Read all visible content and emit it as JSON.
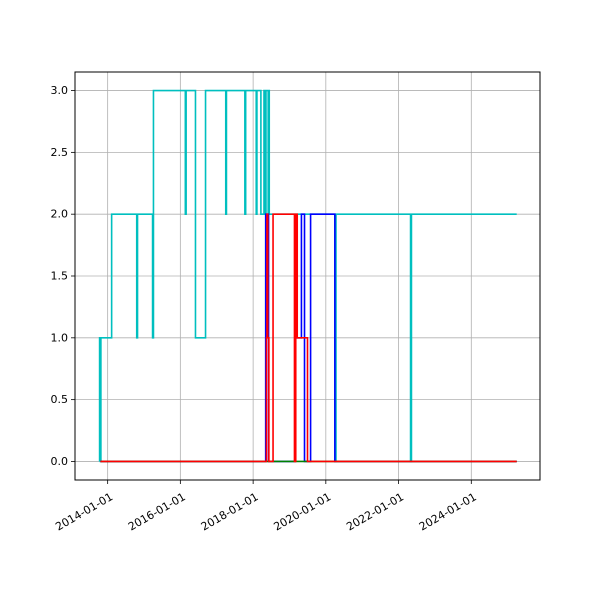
{
  "chart_data": {
    "type": "line",
    "title": "",
    "xlabel": "",
    "ylabel": "",
    "x_is_date": true,
    "xlim": [
      "2013-02-07",
      "2025-11-21"
    ],
    "ylim": [
      -0.15,
      3.15
    ],
    "grid": true,
    "legend": "none",
    "x_ticks": [
      "2014-01-01",
      "2016-01-01",
      "2018-01-01",
      "2020-01-01",
      "2022-01-01",
      "2024-01-01"
    ],
    "y_ticks": [
      0.0,
      0.5,
      1.0,
      1.5,
      2.0,
      2.5,
      3.0
    ],
    "y_tick_labels": [
      "0.0",
      "0.5",
      "1.0",
      "1.5",
      "2.0",
      "2.5",
      "3.0"
    ],
    "series": [
      {
        "color": "#00bfbf",
        "points": [
          [
            "2013-10-12",
            0
          ],
          [
            "2013-10-12",
            1
          ],
          [
            "2013-10-20",
            1
          ],
          [
            "2013-10-20",
            0
          ],
          [
            "2013-10-25",
            0
          ],
          [
            "2013-10-25",
            1
          ],
          [
            "2014-02-10",
            1
          ],
          [
            "2014-02-10",
            2
          ],
          [
            "2014-10-20",
            2
          ],
          [
            "2014-10-20",
            1
          ],
          [
            "2014-10-28",
            1
          ],
          [
            "2014-10-28",
            2
          ],
          [
            "2015-03-28",
            2
          ],
          [
            "2015-03-28",
            1
          ],
          [
            "2015-04-06",
            1
          ],
          [
            "2015-04-06",
            3
          ],
          [
            "2016-02-20",
            3
          ],
          [
            "2016-02-20",
            2
          ],
          [
            "2016-02-28",
            2
          ],
          [
            "2016-02-28",
            3
          ],
          [
            "2016-06-01",
            3
          ],
          [
            "2016-06-01",
            1
          ],
          [
            "2016-09-10",
            1
          ],
          [
            "2016-09-10",
            3
          ],
          [
            "2017-04-01",
            3
          ],
          [
            "2017-04-01",
            2
          ],
          [
            "2017-04-08",
            2
          ],
          [
            "2017-04-08",
            3
          ],
          [
            "2017-10-10",
            3
          ],
          [
            "2017-10-10",
            2
          ],
          [
            "2017-10-18",
            2
          ],
          [
            "2017-10-18",
            3
          ],
          [
            "2018-02-01",
            3
          ],
          [
            "2018-02-01",
            2
          ],
          [
            "2018-02-08",
            2
          ],
          [
            "2018-02-08",
            3
          ],
          [
            "2018-03-20",
            3
          ],
          [
            "2018-03-20",
            2
          ],
          [
            "2018-04-20",
            2
          ],
          [
            "2018-04-20",
            3
          ],
          [
            "2018-05-03",
            3
          ],
          [
            "2018-05-03",
            2
          ],
          [
            "2018-05-10",
            2
          ],
          [
            "2018-05-10",
            3
          ],
          [
            "2018-06-01",
            3
          ],
          [
            "2018-06-01",
            2
          ],
          [
            "2018-06-06",
            2
          ],
          [
            "2018-06-06",
            3
          ],
          [
            "2018-06-12",
            3
          ],
          [
            "2018-06-12",
            2
          ],
          [
            "2020-04-01",
            2
          ],
          [
            "2020-04-01",
            0
          ],
          [
            "2020-04-12",
            0
          ],
          [
            "2020-04-12",
            2
          ],
          [
            "2022-05-01",
            2
          ],
          [
            "2022-05-01",
            0
          ],
          [
            "2022-05-10",
            0
          ],
          [
            "2022-05-10",
            2
          ],
          [
            "2025-04-01",
            2
          ]
        ]
      },
      {
        "color": "#0000ff",
        "points": [
          [
            "2013-10-20",
            0
          ],
          [
            "2018-05-07",
            0
          ],
          [
            "2018-05-07",
            2
          ],
          [
            "2018-06-05",
            2
          ],
          [
            "2018-06-05",
            0
          ],
          [
            "2019-03-01",
            0
          ],
          [
            "2019-03-01",
            1
          ],
          [
            "2019-05-01",
            1
          ],
          [
            "2019-05-01",
            2
          ],
          [
            "2019-06-01",
            2
          ],
          [
            "2019-06-01",
            0
          ],
          [
            "2019-08-01",
            0
          ],
          [
            "2019-08-01",
            2
          ],
          [
            "2020-04-01",
            2
          ],
          [
            "2020-04-01",
            0
          ],
          [
            "2025-04-01",
            0
          ]
        ]
      },
      {
        "color": "#008000",
        "points": [
          [
            "2013-10-20",
            0
          ],
          [
            "2025-04-01",
            0
          ]
        ]
      },
      {
        "color": "#ff0000",
        "points": [
          [
            "2013-10-20",
            0
          ],
          [
            "2018-05-15",
            0
          ],
          [
            "2018-05-15",
            1
          ],
          [
            "2018-05-20",
            1
          ],
          [
            "2018-05-20",
            2
          ],
          [
            "2018-05-28",
            2
          ],
          [
            "2018-05-28",
            1
          ],
          [
            "2018-06-08",
            1
          ],
          [
            "2018-06-08",
            0
          ],
          [
            "2018-07-20",
            0
          ],
          [
            "2018-07-20",
            2
          ],
          [
            "2019-02-20",
            2
          ],
          [
            "2019-02-20",
            0
          ],
          [
            "2019-03-05",
            0
          ],
          [
            "2019-03-05",
            2
          ],
          [
            "2019-03-20",
            2
          ],
          [
            "2019-03-20",
            1
          ],
          [
            "2019-07-01",
            1
          ],
          [
            "2019-07-01",
            0
          ],
          [
            "2025-04-01",
            0
          ]
        ]
      }
    ]
  }
}
